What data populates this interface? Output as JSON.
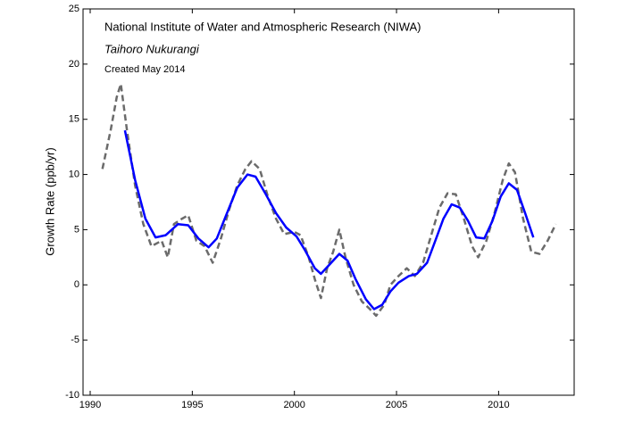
{
  "chart_data": {
    "type": "line",
    "annotations": [
      "National Institute of Water and Atmospheric Research (NIWA)",
      "Taihoro Nukurangi",
      "Created May 2014"
    ],
    "y_label": "Growth Rate (ppb/yr)",
    "xlim": [
      1989.65,
      2013.7
    ],
    "xticks": [
      1990,
      1995,
      2000,
      2005,
      2010
    ],
    "ylim": [
      -10,
      25
    ],
    "yticks": [
      -10,
      -5,
      0,
      5,
      10,
      15,
      20,
      25
    ],
    "series": [
      {
        "color": "#6b6b6b",
        "dashed": true,
        "x": [
          1990.6,
          1991.0,
          1991.3,
          1991.5,
          1991.8,
          1992.2,
          1992.6,
          1993.0,
          1993.5,
          1993.8,
          1994.1,
          1994.5,
          1994.8,
          1995.2,
          1995.6,
          1996.0,
          1996.4,
          1996.8,
          1997.2,
          1997.6,
          1997.9,
          1998.3,
          1998.7,
          1999.1,
          1999.5,
          2000.0,
          2000.3,
          2000.7,
          2001.0,
          2001.3,
          2001.6,
          2001.9,
          2002.2,
          2002.5,
          2002.9,
          2003.3,
          2003.7,
          2004.0,
          2004.4,
          2004.7,
          2005.1,
          2005.5,
          2005.9,
          2006.3,
          2006.7,
          2007.1,
          2007.5,
          2007.9,
          2008.3,
          2008.7,
          2009.0,
          2009.4,
          2009.8,
          2010.2,
          2010.5,
          2010.8,
          2011.2,
          2011.6,
          2012.0,
          2012.4,
          2012.8
        ],
        "values": [
          10.5,
          14,
          17,
          18.2,
          14,
          9,
          5.5,
          3.5,
          4.0,
          2.5,
          5.5,
          6.0,
          6.3,
          4.0,
          3.5,
          2.0,
          4.2,
          6.8,
          9.0,
          10.5,
          11.2,
          10.5,
          8.0,
          6.0,
          4.6,
          4.8,
          4.5,
          2.5,
          0.5,
          -1.2,
          1.5,
          3.0,
          5.0,
          2.5,
          0.0,
          -1.5,
          -2.2,
          -2.8,
          -1.8,
          0.0,
          0.8,
          1.5,
          0.8,
          2.0,
          4.5,
          7.0,
          8.3,
          8.2,
          6.0,
          3.5,
          2.5,
          4.0,
          6.5,
          9.5,
          11.0,
          10.2,
          6.0,
          3.0,
          2.8,
          4.0,
          5.5
        ]
      },
      {
        "color": "#0000ff",
        "dashed": false,
        "x": [
          1991.7,
          1992.2,
          1992.7,
          1993.2,
          1993.7,
          1994.3,
          1994.8,
          1995.3,
          1995.8,
          1996.2,
          1996.7,
          1997.2,
          1997.7,
          1998.1,
          1998.6,
          1999.1,
          1999.6,
          2000.1,
          2000.5,
          2001.0,
          2001.3,
          2001.7,
          2002.2,
          2002.6,
          2003.0,
          2003.5,
          2003.9,
          2004.3,
          2004.7,
          2005.1,
          2005.6,
          2006.0,
          2006.5,
          2006.9,
          2007.3,
          2007.7,
          2008.1,
          2008.5,
          2008.9,
          2009.3,
          2009.7,
          2010.1,
          2010.5,
          2010.9,
          2011.3,
          2011.7
        ],
        "values": [
          14,
          9.5,
          6,
          4.3,
          4.5,
          5.5,
          5.4,
          4.2,
          3.4,
          4.2,
          6.5,
          8.8,
          10.0,
          9.8,
          8.2,
          6.5,
          5.2,
          4.4,
          3.2,
          1.5,
          1.0,
          1.8,
          2.8,
          2.2,
          0.5,
          -1.3,
          -2.2,
          -1.8,
          -0.6,
          0.2,
          0.8,
          1.0,
          2.0,
          4.0,
          6.0,
          7.3,
          7.0,
          5.8,
          4.3,
          4.2,
          5.8,
          8.0,
          9.2,
          8.6,
          6.5,
          4.3
        ]
      }
    ]
  }
}
